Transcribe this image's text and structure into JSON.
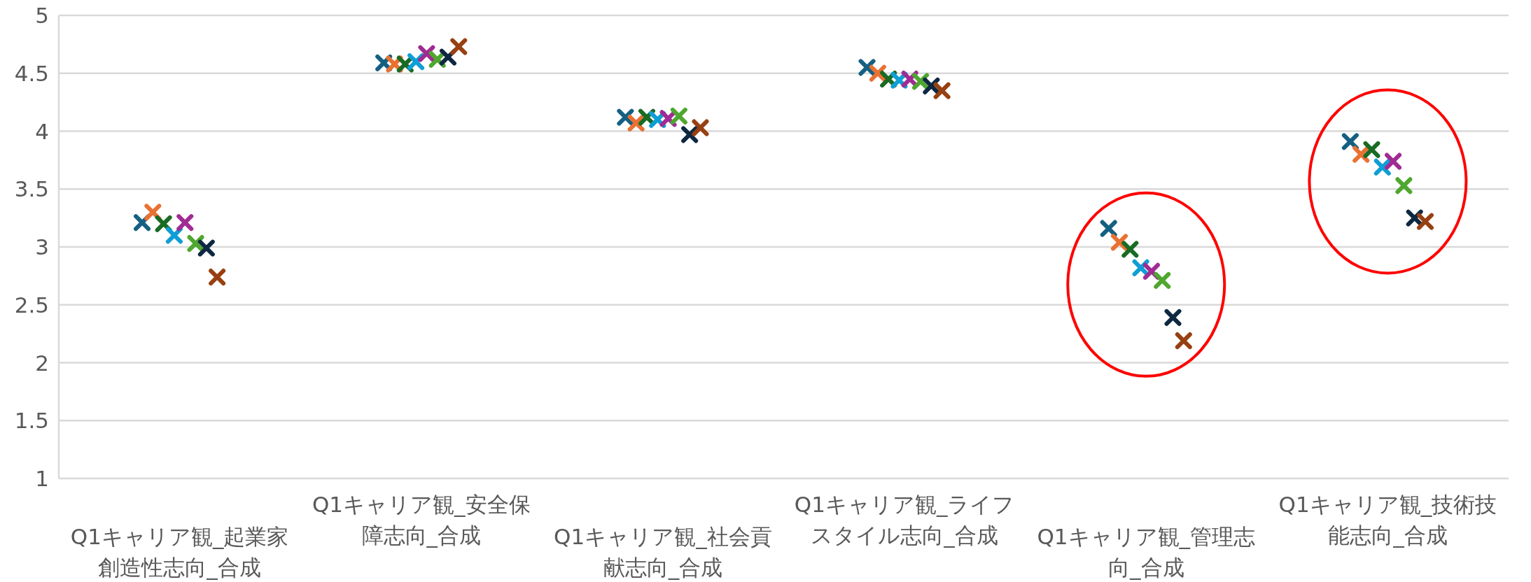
{
  "chart_data": {
    "type": "scatter",
    "marker": "cross",
    "grid": "y",
    "categories": [
      "Q1キャリア観_起業家創造性志向_合成",
      "Q1キャリア観_安全保障志向_合成",
      "Q1キャリア観_社会貢献志向_合成",
      "Q1キャリア観_ライフスタイル志向_合成",
      "Q1キャリア観_管理志向_合成",
      "Q1キャリア観_技術技能志向_合成"
    ],
    "ylim": [
      1,
      5
    ],
    "yticks": [
      1,
      1.5,
      2,
      2.5,
      3,
      3.5,
      4,
      4.5,
      5
    ],
    "series": [
      {
        "color": "#156082",
        "values": [
          3.21,
          4.59,
          4.12,
          4.55,
          3.16,
          3.91
        ]
      },
      {
        "color": "#e97132",
        "values": [
          3.3,
          4.58,
          4.07,
          4.5,
          3.04,
          3.8
        ]
      },
      {
        "color": "#196b24",
        "values": [
          3.2,
          4.58,
          4.12,
          4.45,
          2.98,
          3.84
        ]
      },
      {
        "color": "#0f9ed5",
        "values": [
          3.1,
          4.6,
          4.1,
          4.44,
          2.82,
          3.69
        ]
      },
      {
        "color": "#a02b93",
        "values": [
          3.21,
          4.67,
          4.11,
          4.45,
          2.79,
          3.74
        ]
      },
      {
        "color": "#4ea72e",
        "values": [
          3.03,
          4.62,
          4.13,
          4.43,
          2.71,
          3.53
        ]
      },
      {
        "color": "#0e2841",
        "values": [
          2.99,
          4.64,
          3.97,
          4.39,
          2.39,
          3.25
        ]
      },
      {
        "color": "#974011",
        "values": [
          2.74,
          4.73,
          4.03,
          4.35,
          2.19,
          3.22
        ]
      }
    ]
  }
}
